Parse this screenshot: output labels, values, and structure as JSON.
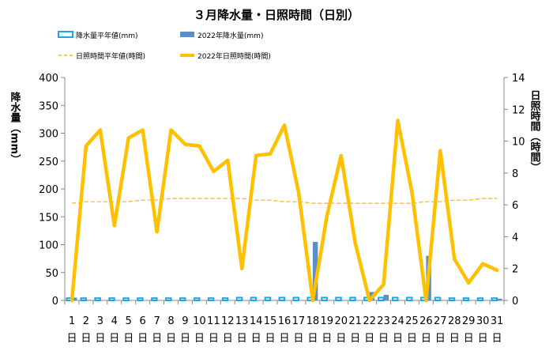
{
  "colors": {
    "rain_avg": "#1aa7e6",
    "rain_2022": "#5b8fc7",
    "sun_avg": "#f5b828",
    "sun_2022": "#ffc000",
    "axis": "#888888",
    "text": "#000000"
  },
  "chart_data": {
    "type": "bar+line",
    "title": "３月降水量・日照時間（日別）",
    "ylabel": "降水量（mm）",
    "y2label": "日照時間（時間）",
    "ylim": [
      0,
      400
    ],
    "y2lim": [
      0,
      14
    ],
    "yticks": [
      0,
      50,
      100,
      150,
      200,
      250,
      300,
      350,
      400
    ],
    "y2ticks": [
      0,
      2,
      4,
      6,
      8,
      10,
      12,
      14
    ],
    "x": [
      1,
      2,
      3,
      4,
      5,
      6,
      7,
      8,
      9,
      10,
      11,
      12,
      13,
      14,
      15,
      16,
      17,
      18,
      19,
      20,
      21,
      22,
      23,
      24,
      25,
      26,
      27,
      28,
      29,
      30,
      31
    ],
    "x_labels": [
      "1",
      "2",
      "3",
      "4",
      "5",
      "6",
      "7",
      "8",
      "9",
      "10",
      "11",
      "12",
      "13",
      "14",
      "15",
      "16",
      "17",
      "18",
      "19",
      "20",
      "21",
      "22",
      "23",
      "24",
      "25",
      "26",
      "27",
      "28",
      "29",
      "30",
      "31"
    ],
    "x_suffix": "日",
    "legend_position": "top",
    "grid": false,
    "series": [
      {
        "name": "降水量平年値(mm)",
        "kind": "bar-outline",
        "axis": "left",
        "values": [
          4,
          4,
          4,
          4,
          4,
          4,
          4,
          4,
          4,
          4,
          4,
          4,
          5,
          5,
          5,
          5,
          5,
          5,
          5,
          5,
          5,
          5,
          5,
          5,
          5,
          5,
          5,
          4,
          4,
          4,
          4
        ]
      },
      {
        "name": "2022年降水量(mm)",
        "kind": "bar",
        "axis": "left",
        "values": [
          5,
          1,
          0,
          0,
          0,
          0,
          0,
          0,
          0,
          0,
          0,
          0,
          0,
          0,
          0,
          0,
          0,
          105,
          0,
          0,
          0,
          15,
          10,
          0,
          0,
          80,
          0,
          0,
          0,
          0,
          3
        ]
      },
      {
        "name": "日照時間平年値(時間)",
        "kind": "line-dashed",
        "axis": "right",
        "values": [
          6.1,
          6.2,
          6.2,
          6.2,
          6.2,
          6.3,
          6.3,
          6.4,
          6.4,
          6.4,
          6.4,
          6.4,
          6.4,
          6.3,
          6.3,
          6.2,
          6.2,
          6.1,
          6.1,
          6.1,
          6.1,
          6.1,
          6.1,
          6.1,
          6.1,
          6.2,
          6.2,
          6.3,
          6.3,
          6.4,
          6.4
        ]
      },
      {
        "name": "2022年日照時間(時間)",
        "kind": "line",
        "axis": "right",
        "values": [
          0,
          9.7,
          10.7,
          4.7,
          10.2,
          10.7,
          4.3,
          10.7,
          9.8,
          9.7,
          8.1,
          8.8,
          2.0,
          9.1,
          9.2,
          11.0,
          6.8,
          0,
          5.3,
          9.1,
          3.6,
          0,
          1.0,
          11.3,
          6.8,
          0,
          9.4,
          2.6,
          1.1,
          2.3,
          1.9
        ]
      }
    ]
  }
}
